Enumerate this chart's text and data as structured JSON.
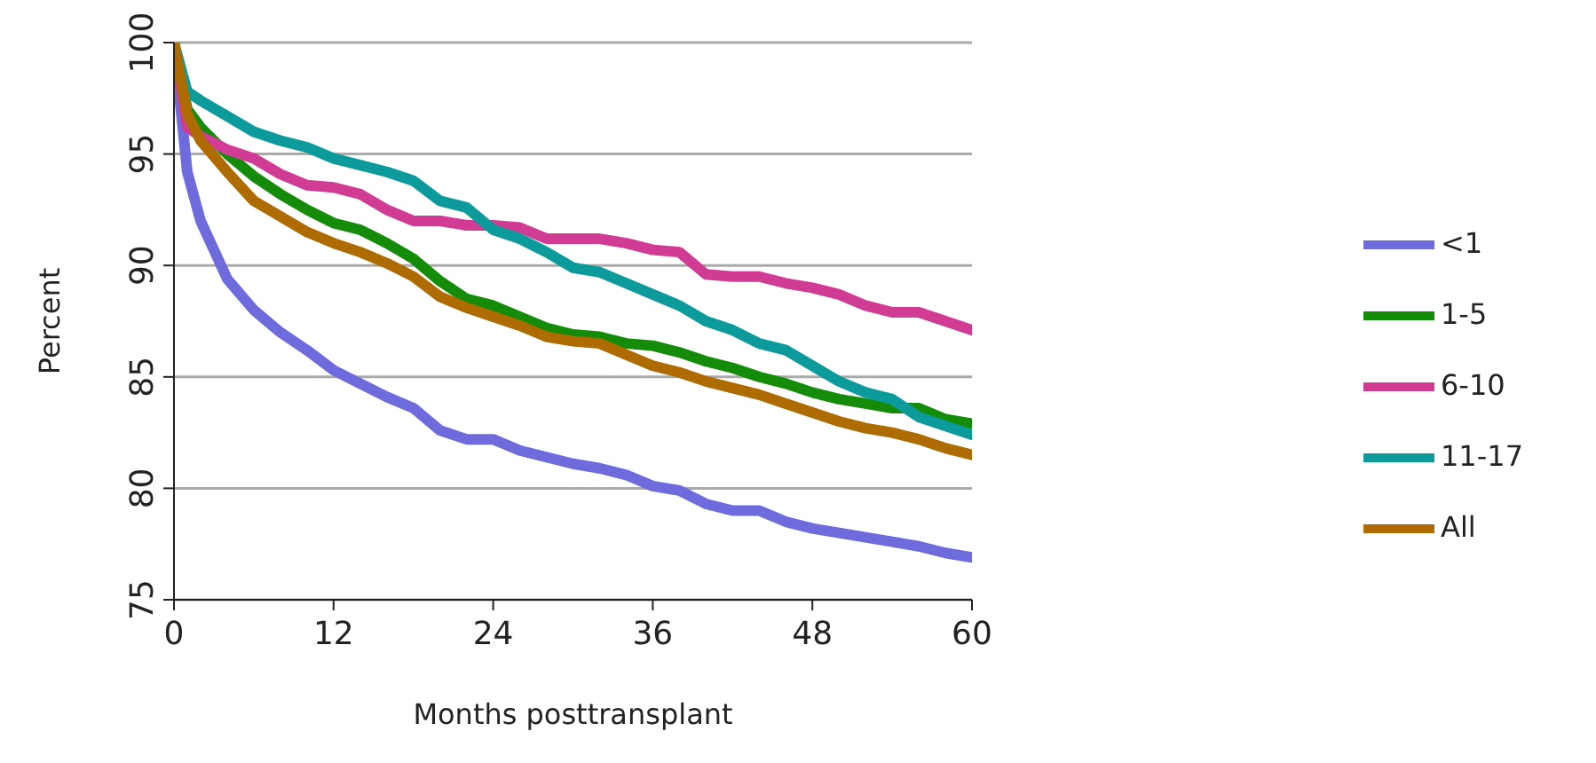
{
  "chart_data": {
    "type": "line",
    "xlabel": "Months posttransplant",
    "ylabel": "Percent",
    "x": [
      0,
      1,
      2,
      4,
      6,
      8,
      10,
      12,
      14,
      16,
      18,
      20,
      22,
      24,
      26,
      28,
      30,
      32,
      34,
      36,
      38,
      40,
      42,
      44,
      46,
      48,
      50,
      52,
      54,
      56,
      58,
      60
    ],
    "series": [
      {
        "name": "<1",
        "color": "#6e6bdc",
        "values": [
          100,
          94.2,
          92,
          89.4,
          88,
          87,
          86.2,
          85.3,
          84.7,
          84.1,
          83.6,
          82.6,
          82.2,
          82.2,
          81.7,
          81.4,
          81.1,
          80.9,
          80.6,
          80.1,
          79.9,
          79.3,
          79.0,
          79.0,
          78.5,
          78.2,
          78.0,
          77.8,
          77.6,
          77.4,
          77.1,
          76.9
        ]
      },
      {
        "name": "1-5",
        "color": "#148c0a",
        "values": [
          100,
          97,
          96.2,
          95,
          94,
          93.2,
          92.5,
          91.9,
          91.6,
          91,
          90.3,
          89.3,
          88.5,
          88.2,
          87.7,
          87.2,
          86.9,
          86.8,
          86.5,
          86.4,
          86.1,
          85.7,
          85.4,
          85,
          84.7,
          84.3,
          84,
          83.8,
          83.6,
          83.6,
          83.1,
          82.9
        ]
      },
      {
        "name": "6-10",
        "color": "#d03c94",
        "values": [
          100,
          96.2,
          95.8,
          95.2,
          94.8,
          94.1,
          93.6,
          93.5,
          93.2,
          92.5,
          92,
          92,
          91.8,
          91.8,
          91.7,
          91.2,
          91.2,
          91.2,
          91,
          90.7,
          90.6,
          89.6,
          89.5,
          89.5,
          89.2,
          89,
          88.7,
          88.2,
          87.9,
          87.9,
          87.5,
          87.1
        ]
      },
      {
        "name": "11-17",
        "color": "#0d9a9a",
        "values": [
          100,
          97.8,
          97.4,
          96.7,
          96,
          95.6,
          95.3,
          94.8,
          94.5,
          94.2,
          93.8,
          92.9,
          92.6,
          91.6,
          91.2,
          90.6,
          89.9,
          89.7,
          89.2,
          88.7,
          88.2,
          87.5,
          87.1,
          86.5,
          86.2,
          85.5,
          84.8,
          84.3,
          84,
          83.2,
          82.8,
          82.4
        ]
      },
      {
        "name": "All",
        "color": "#ad6b00",
        "values": [
          100,
          96.8,
          95.6,
          94.2,
          92.9,
          92.2,
          91.5,
          91,
          90.6,
          90.1,
          89.5,
          88.6,
          88.1,
          87.7,
          87.3,
          86.8,
          86.6,
          86.5,
          86,
          85.5,
          85.2,
          84.8,
          84.5,
          84.2,
          83.8,
          83.4,
          83,
          82.7,
          82.5,
          82.2,
          81.8,
          81.5
        ]
      }
    ],
    "xlim": [
      0,
      60
    ],
    "xticks": [
      0,
      12,
      24,
      36,
      48,
      60
    ],
    "ylim": [
      75,
      100
    ],
    "yticks": [
      75,
      80,
      85,
      90,
      95,
      100
    ],
    "grid": "y",
    "legend": "right",
    "marker": "none",
    "line_style": "solid"
  }
}
